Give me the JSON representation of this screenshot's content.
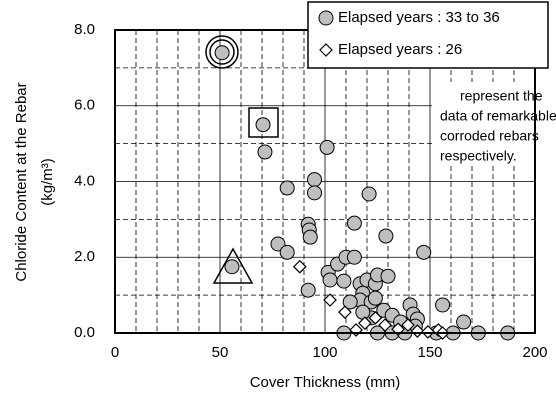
{
  "chart_data": {
    "type": "scatter",
    "xlabel": "Cover Thickness (mm)",
    "ylabel": "Chloride Content at the Rebar",
    "ylabel_unit": "(kg/m³)",
    "xlim": [
      0,
      200
    ],
    "xticks": [
      0,
      50,
      100,
      150,
      200
    ],
    "ylim": [
      0,
      8
    ],
    "yticks": [
      {
        "value": 0,
        "label": "0.0"
      },
      {
        "value": 2,
        "label": "2.0"
      },
      {
        "value": 4,
        "label": "4.0"
      },
      {
        "value": 6,
        "label": "6.0"
      },
      {
        "value": 8,
        "label": "8.0"
      }
    ],
    "grid": true,
    "legend": "upper right",
    "annotation": [
      "represent the",
      "data of remarkable",
      "corroded rebars",
      "respectively."
    ],
    "series": [
      {
        "name": "Elapsed years : 33 to 36",
        "marker": "circle",
        "color": "#bfbfbf",
        "x": [
          51,
          70.5,
          71.4,
          101,
          95,
          95,
          82,
          121,
          92,
          92.5,
          93,
          77.6,
          82,
          114,
          129,
          147,
          55.7,
          92,
          101.5,
          102.4,
          106,
          110,
          114,
          109,
          116.7,
          118,
          120,
          124,
          125,
          130,
          116.7,
          112,
          122,
          124,
          128,
          132,
          136,
          140.5,
          142,
          144,
          143,
          153,
          156,
          161,
          166,
          173,
          187,
          109,
          125,
          132,
          138,
          122,
          118
        ],
        "values": [
          7.4,
          5.5,
          4.78,
          4.9,
          4.05,
          3.7,
          3.83,
          3.67,
          2.87,
          2.72,
          2.53,
          2.35,
          2.13,
          2.9,
          2.56,
          2.13,
          1.75,
          1.13,
          1.6,
          1.4,
          1.82,
          2.0,
          2.0,
          1.37,
          1.3,
          1.05,
          1.4,
          1.3,
          1.53,
          1.5,
          0.87,
          0.82,
          0.82,
          0.92,
          0.6,
          0.47,
          0.29,
          0.74,
          0.5,
          0.37,
          0.18,
          0,
          0.74,
          0,
          0.29,
          0,
          0,
          0,
          0,
          0,
          0,
          0.4,
          0.55
        ]
      },
      {
        "name": "Elapsed years : 26",
        "marker": "diamond",
        "color": "#ffffff",
        "x": [
          88,
          102.4,
          109.5,
          119,
          124,
          128.6,
          134.8,
          139.5,
          144,
          149,
          154,
          156,
          114.8
        ],
        "values": [
          1.75,
          0.87,
          0.55,
          0.26,
          0.4,
          0.21,
          0.1,
          0.21,
          0.05,
          0.03,
          0.08,
          0,
          0.08
        ]
      }
    ]
  }
}
